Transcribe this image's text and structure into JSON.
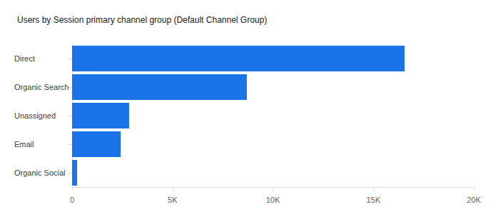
{
  "chart_data": {
    "type": "bar",
    "title": "Users by Session primary channel group (Default Channel Group)",
    "orientation": "horizontal",
    "categories": [
      "Direct",
      "Organic Search",
      "Unassigned",
      "Email",
      "Organic Social"
    ],
    "values": [
      16550,
      8700,
      2840,
      2420,
      250
    ],
    "color": "#1a73e8",
    "xlim": [
      0,
      20000
    ],
    "xticks": [
      0,
      {
        "value": 5000,
        "label": "5K"
      },
      {
        "value": 10000,
        "label": "10K"
      },
      {
        "value": 15000,
        "label": "15K"
      },
      {
        "value": 20000,
        "label": "20K"
      }
    ],
    "grid": false
  }
}
